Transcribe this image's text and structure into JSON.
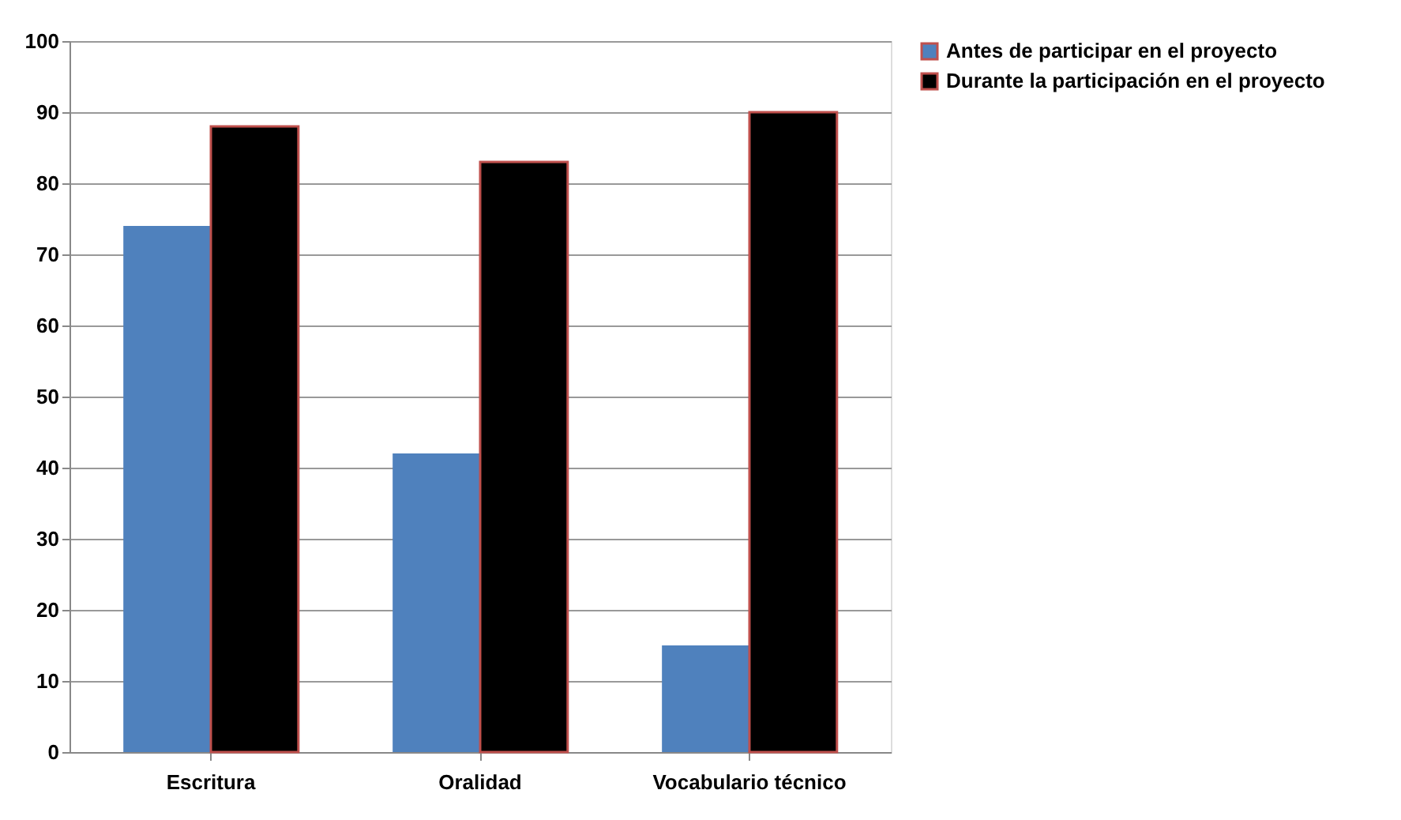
{
  "chart_data": {
    "type": "bar",
    "categories": [
      "Escritura",
      "Oralidad",
      "Vocabulario técnico"
    ],
    "series": [
      {
        "name": "Antes  de participar en el proyecto",
        "color": "#4f81bd",
        "values": [
          74,
          42,
          15
        ]
      },
      {
        "name": "Durante la participación en el proyecto",
        "color": "#000000",
        "values": [
          88,
          83,
          90
        ]
      }
    ],
    "ylim": [
      0,
      100
    ],
    "yticks": [
      0,
      10,
      20,
      30,
      40,
      50,
      60,
      70,
      80,
      90,
      100
    ],
    "grid": "y",
    "legend": "right"
  }
}
